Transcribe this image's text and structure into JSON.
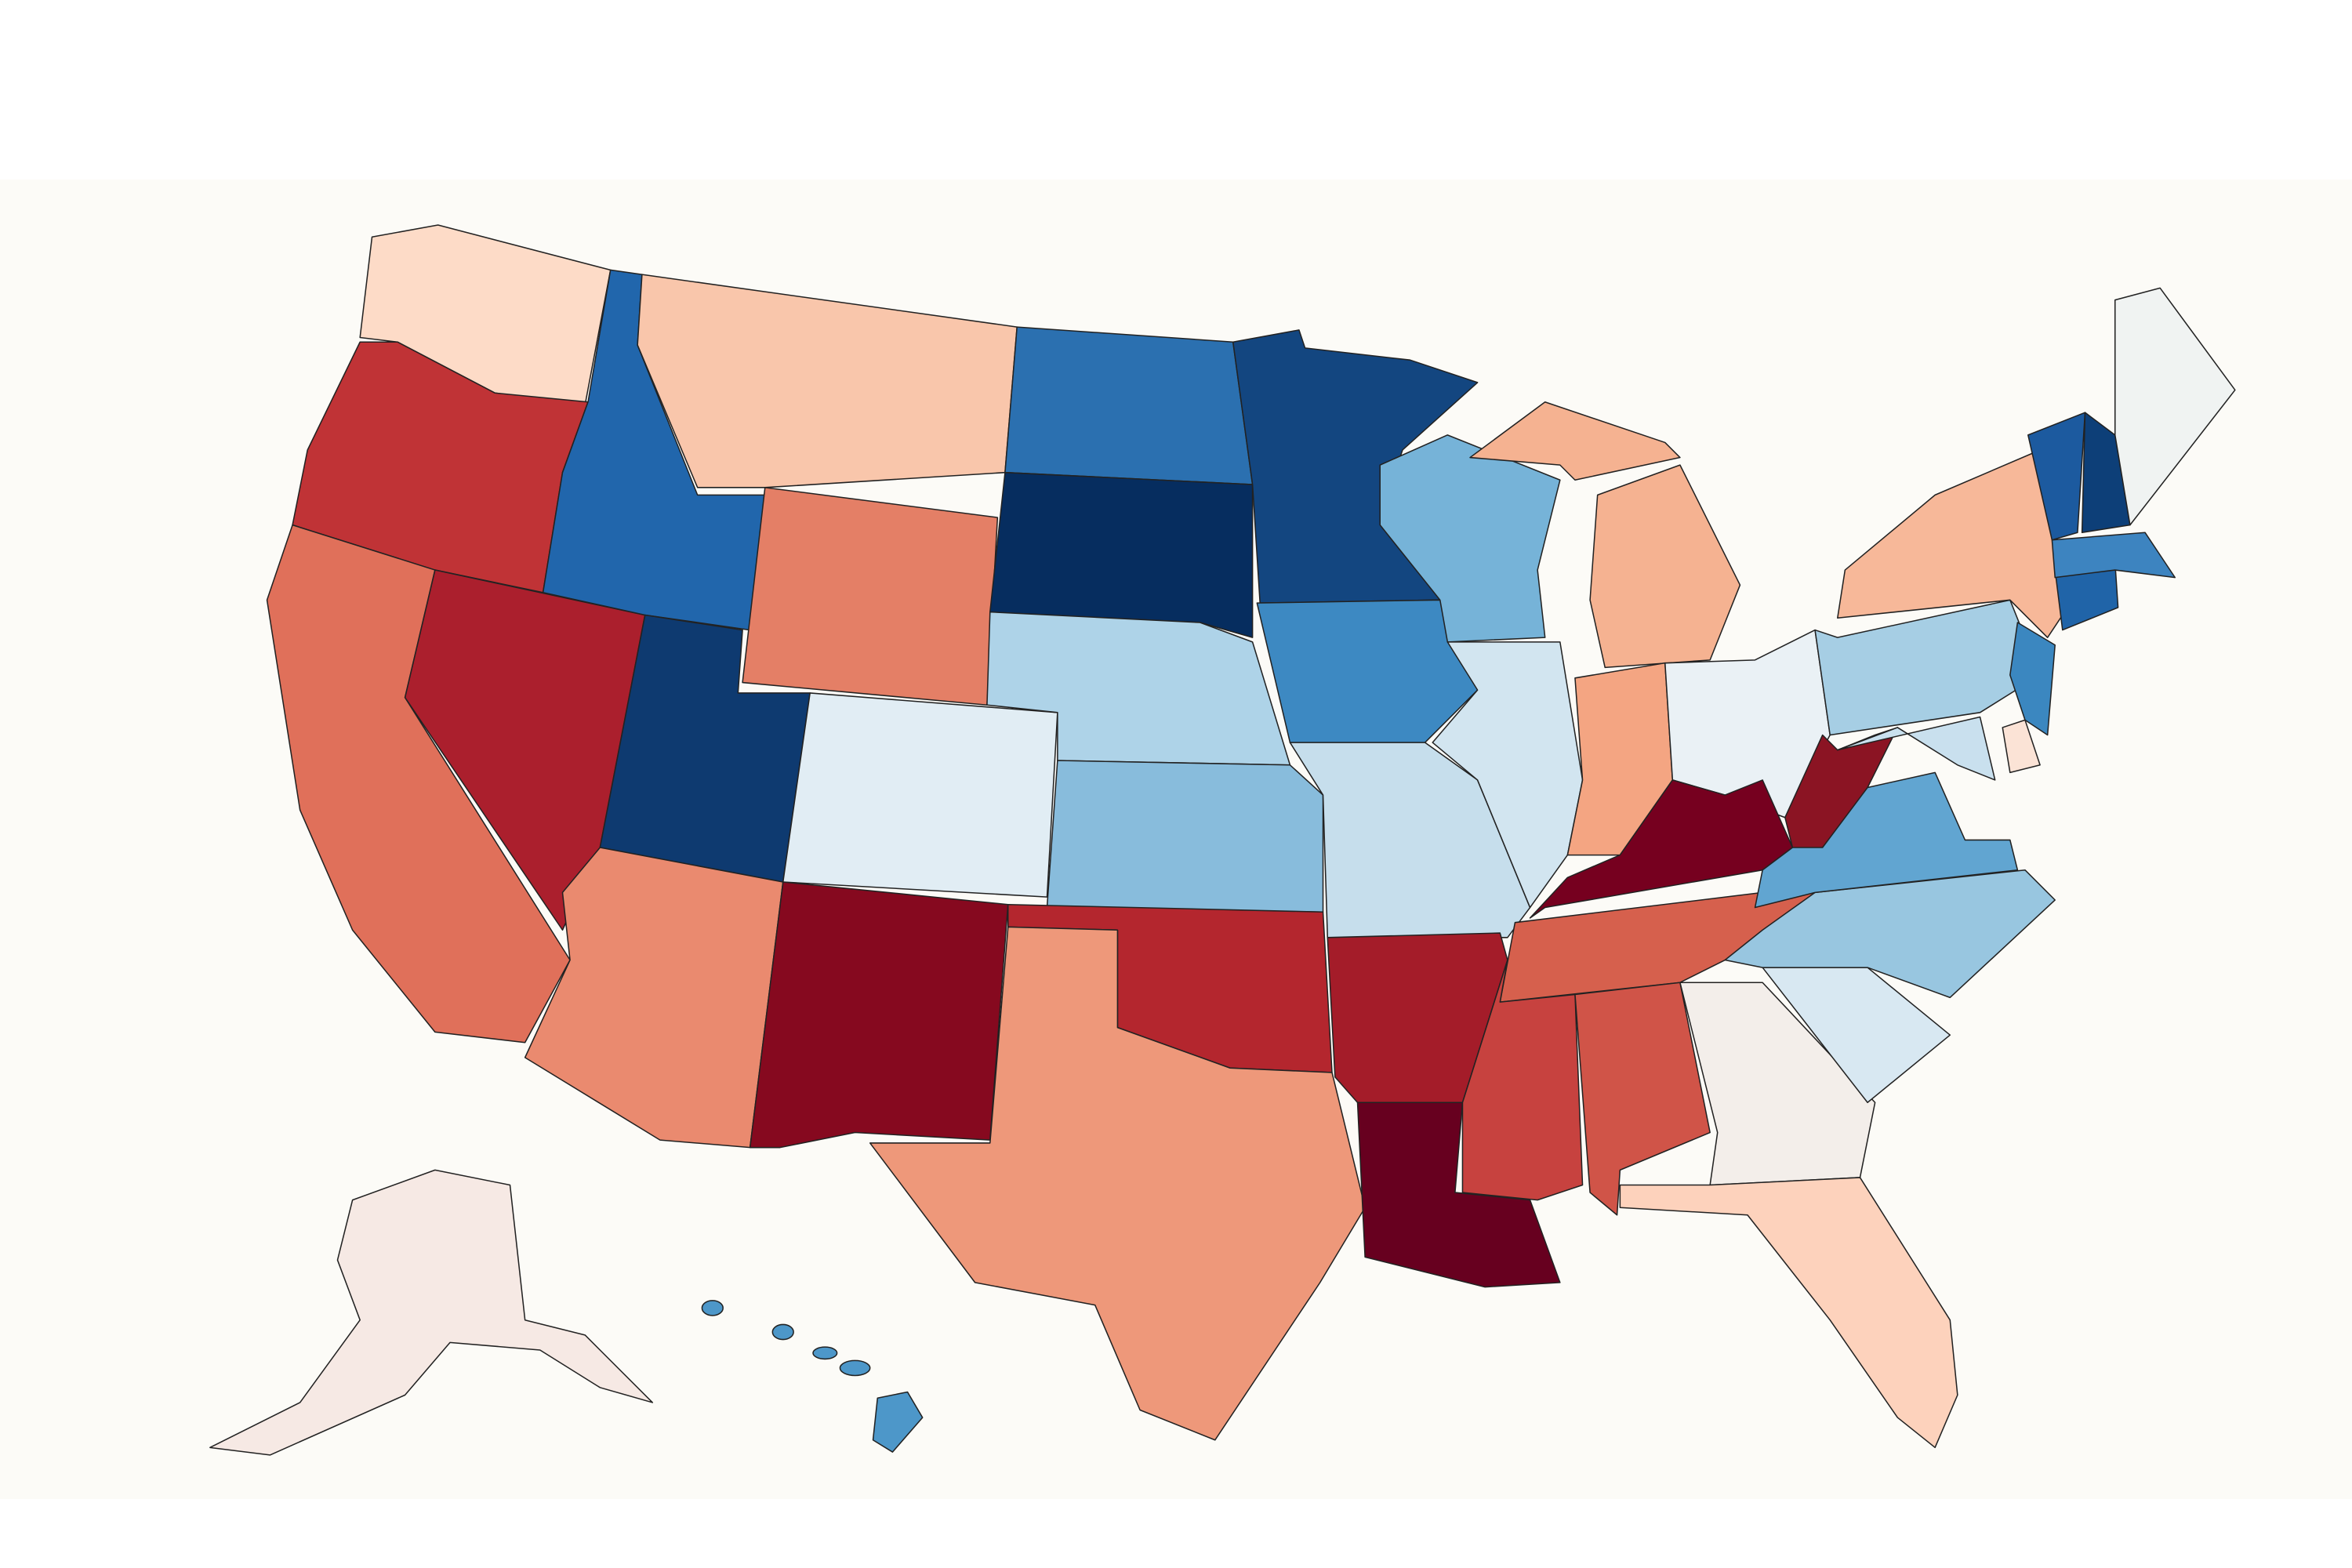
{
  "map": {
    "background": "#fcfbf7",
    "regions": [
      {
        "color": "#fddbc7"
      },
      {
        "color": "#c03336"
      },
      {
        "color": "#e0705a"
      },
      {
        "color": "#ab1f2d"
      },
      {
        "color": "#2166ac"
      },
      {
        "color": "#f9c6ab"
      },
      {
        "color": "#e47f66"
      },
      {
        "color": "#0e3a70"
      },
      {
        "color": "#e1edf4"
      },
      {
        "color": "#ea8a6f"
      },
      {
        "color": "#86091f"
      },
      {
        "color": "#2b70b0"
      },
      {
        "color": "#062d5f"
      },
      {
        "color": "#aed3e8"
      },
      {
        "color": "#88bcdc"
      },
      {
        "color": "#b4262e"
      },
      {
        "color": "#ee987a"
      },
      {
        "color": "#134680"
      },
      {
        "color": "#3d89c2"
      },
      {
        "color": "#c6deec"
      },
      {
        "color": "#a41c29"
      },
      {
        "color": "#67001f"
      },
      {
        "color": "#76b3d8"
      },
      {
        "color": "#d2e5f0"
      },
      {
        "color": "#f5b291"
      },
      {
        "color": "#f4a582"
      },
      {
        "color": "#eaf1f5"
      },
      {
        "color": "#76001f"
      },
      {
        "color": "#d6604d"
      },
      {
        "color": "#c7423f"
      },
      {
        "color": "#d05448"
      },
      {
        "color": "#f3eeea"
      },
      {
        "color": "#fdd2bc"
      },
      {
        "color": "#d8e8f2"
      },
      {
        "color": "#98c6e0"
      },
      {
        "color": "#61a5d1"
      },
      {
        "color": "#8b1423"
      },
      {
        "color": "#a6cee4"
      },
      {
        "color": "#f7b899"
      },
      {
        "color": "#c9e0ee"
      },
      {
        "color": "#fbe3d6"
      },
      {
        "color": "#3b87c0"
      },
      {
        "color": "#2064a8"
      },
      {
        "color": "#3d84c0"
      },
      {
        "color": "#1c5a9f"
      },
      {
        "color": "#0d3f78"
      },
      {
        "color": "#f0f3f2"
      },
      {
        "color": "#f6e9e4"
      },
      {
        "color": "#4d97c9"
      }
    ]
  }
}
